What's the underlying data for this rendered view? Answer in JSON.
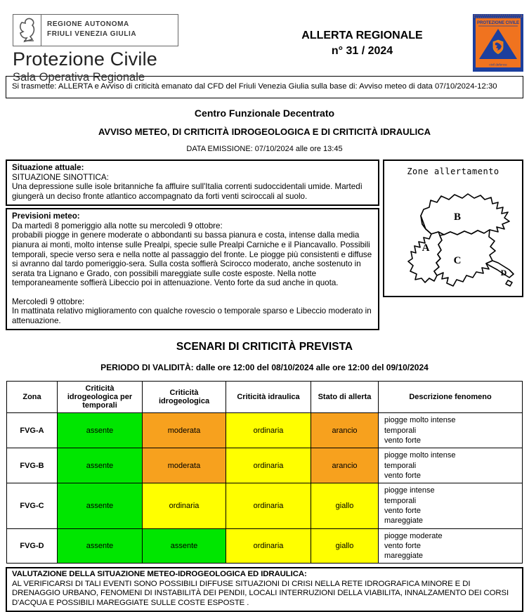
{
  "header": {
    "org_line1": "REGIONE AUTONOMA",
    "org_line2": "FRIULI VENEZIA GIULIA",
    "org_name": "Protezione Civile",
    "org_sub": "Sala Operativa Regionale",
    "title_line1": "ALLERTA REGIONALE",
    "title_line2": "n° 31 / 2024",
    "badge_title": "PROTEZIONE CIVILE",
    "badge_footer": "civil defence"
  },
  "transmittal": "Si trasmette: ALLERTA e Avviso di criticità emanato dal CFD del Friuli Venezia Giulia sulla base di:  Avviso meteo di data 07/10/2024-12:30",
  "cfd": {
    "title": "Centro Funzionale Decentrato",
    "subtitle": "AVVISO METEO, DI CRITICITÀ IDROGEOLOGICA E DI CRITICITÀ IDRAULICA",
    "emission": "DATA EMISSIONE: 07/10/2024 alle ore 13:45"
  },
  "situazione": {
    "title": "Situazione attuale:",
    "line1": "SITUAZIONE SINOTTICA:",
    "body": "Una depressione sulle isole britanniche fa affluire sull'Italia correnti sudoccidentali umide. Martedì giungerà un deciso fronte atlantico accompagnato da forti venti sciroccali al suolo."
  },
  "previsioni": {
    "title": "Previsioni meteo:",
    "p1_intro": "Da martedì 8 pomeriggio alla notte su mercoledì 9 ottobre:",
    "p1_body": "probabili piogge in genere moderate o abbondanti su bassa pianura e costa, intense dalla media pianura ai monti, molto intense sulle Prealpi, specie sulle Prealpi Carniche e il Piancavallo. Possibili temporali, specie verso sera e nella notte al passaggio del fronte. Le piogge più consistenti e diffuse si avranno dal tardo pomeriggio-sera. Sulla costa soffierà Scirocco moderato, anche sostenuto in serata tra Lignano e Grado, con possibili mareggiate sulle coste esposte. Nella notte temporaneamente soffierà Libeccio poi in attenuazione. Vento forte da sud anche in quota.",
    "p2_intro": "Mercoledì 9 ottobre:",
    "p2_body": "In mattinata relativo miglioramento con qualche rovescio o temporale sparso e Libeccio moderato in attenuazione."
  },
  "map": {
    "title": "Zone allertamento",
    "zones": [
      "A",
      "B",
      "C",
      "D"
    ]
  },
  "scenari": {
    "title": "SCENARI DI CRITICITÀ PREVISTA",
    "validity": "PERIODO DI VALIDITÀ: dalle ore 12:00 del 08/10/2024 alle ore 12:00 del 09/10/2024"
  },
  "table": {
    "headers": [
      "Zona",
      "Criticità idrogeologica per temporali",
      "Criticità idrogeologica",
      "Criticità idraulica",
      "Stato di allerta",
      "Descrizione fenomeno"
    ],
    "rows": [
      {
        "zona": "FVG-A",
        "cells": [
          {
            "text": "assente",
            "level": "green"
          },
          {
            "text": "moderata",
            "level": "orange"
          },
          {
            "text": "ordinaria",
            "level": "yellow"
          },
          {
            "text": "arancio",
            "level": "orange"
          }
        ],
        "descrizione": [
          "piogge molto intense",
          "temporali",
          "vento forte"
        ]
      },
      {
        "zona": "FVG-B",
        "cells": [
          {
            "text": "assente",
            "level": "green"
          },
          {
            "text": "moderata",
            "level": "orange"
          },
          {
            "text": "ordinaria",
            "level": "yellow"
          },
          {
            "text": "arancio",
            "level": "orange"
          }
        ],
        "descrizione": [
          "piogge molto intense",
          "temporali",
          "vento forte"
        ]
      },
      {
        "zona": "FVG-C",
        "cells": [
          {
            "text": "assente",
            "level": "green"
          },
          {
            "text": "ordinaria",
            "level": "yellow"
          },
          {
            "text": "ordinaria",
            "level": "yellow"
          },
          {
            "text": "giallo",
            "level": "yellow"
          }
        ],
        "descrizione": [
          "piogge intense",
          "temporali",
          "vento forte",
          "mareggiate"
        ]
      },
      {
        "zona": "FVG-D",
        "cells": [
          {
            "text": "assente",
            "level": "green"
          },
          {
            "text": "assente",
            "level": "green"
          },
          {
            "text": "ordinaria",
            "level": "yellow"
          },
          {
            "text": "giallo",
            "level": "yellow"
          }
        ],
        "descrizione": [
          "piogge moderate",
          "vento forte",
          "mareggiate"
        ]
      }
    ]
  },
  "valutazione": {
    "title": "VALUTAZIONE DELLA SITUAZIONE METEO-IDROGEOLOGICA ED IDRAULICA:",
    "body": "AL VERIFICARSI DI TALI EVENTI SONO POSSIBILI DIFFUSE SITUAZIONI DI CRISI NELLA RETE IDROGRAFICA MINORE E DI DRENAGGIO URBANO, FENOMENI DI INSTABILITÀ DEI PENDII, LOCALI INTERRUZIONI DELLA VIABILITA, INNALZAMENTO DEI CORSI D'ACQUA E POSSIBILI MAREGGIATE SULLE COSTE ESPOSTE ."
  },
  "colors": {
    "green": "#00E600",
    "orange": "#F7A11E",
    "yellow": "#FFFF00",
    "badge_blue": "#1C3F9E",
    "badge_orange": "#F0731F"
  }
}
